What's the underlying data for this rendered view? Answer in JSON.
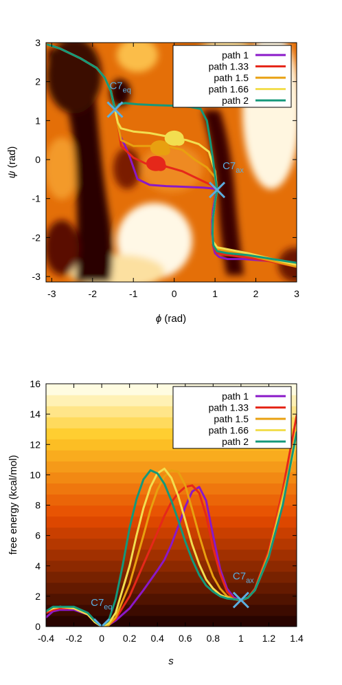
{
  "chart_data": [
    {
      "type": "heatmap",
      "xlabel_sym": "ϕ",
      "xlabel_unit": "(rad)",
      "ylabel_sym": "ψ",
      "ylabel_unit": "(rad)",
      "xlim": [
        -3.14,
        3.0
      ],
      "ylim": [
        -3.14,
        3.0
      ],
      "xticks": [
        "-3",
        "-2",
        "-1",
        "0",
        "1",
        "2",
        "3"
      ],
      "xtick_values": [
        -3,
        -2,
        -1,
        0,
        1,
        2,
        3
      ],
      "yticks": [
        "3",
        "2",
        "1",
        "0",
        "-1",
        "-2",
        "-3"
      ],
      "ytick_values": [
        3,
        2,
        1,
        0,
        -1,
        -2,
        -3
      ],
      "grid": false,
      "legend_position": "top-right",
      "colormap": "afmhot (dark = low free energy, white = high)",
      "markers": [
        {
          "label_main": "C7",
          "label_sub": "eq",
          "x": -1.45,
          "y": 1.28,
          "color": "#5aaee0"
        },
        {
          "label_main": "C7",
          "label_sub": "ax",
          "x": 1.05,
          "y": -0.78,
          "color": "#5aaee0"
        }
      ],
      "series": [
        {
          "name": "path 1",
          "color": "#8a18c8",
          "x": [
            -3.1,
            -2.8,
            -2.3,
            -1.9,
            -1.7,
            -1.55,
            -1.45,
            -1.38,
            -1.32,
            -1.2,
            -1.1,
            -0.9,
            -0.6,
            -0.2,
            0.3,
            0.7,
            0.95,
            1.05,
            1.0,
            0.95,
            0.93,
            0.93,
            0.95,
            1.0,
            1.1,
            1.3,
            1.7,
            2.3,
            3.0
          ],
          "y": [
            2.95,
            2.85,
            2.6,
            2.35,
            2.1,
            1.75,
            1.28,
            0.9,
            0.6,
            0.35,
            0.1,
            -0.5,
            -0.65,
            -0.68,
            -0.7,
            -0.72,
            -0.74,
            -0.78,
            -1.0,
            -1.3,
            -1.6,
            -1.9,
            -2.2,
            -2.4,
            -2.5,
            -2.55,
            -2.55,
            -2.6,
            -2.7
          ]
        },
        {
          "name": "path 1.33",
          "color": "#e5281a",
          "x": [
            -3.1,
            -2.8,
            -2.3,
            -1.9,
            -1.7,
            -1.55,
            -1.45,
            -1.38,
            -1.3,
            -1.0,
            -0.7,
            -0.3,
            0.2,
            0.6,
            0.9,
            1.05,
            1.0,
            0.95,
            0.94,
            0.95,
            1.05,
            1.3,
            1.7,
            2.3,
            3.0
          ],
          "y": [
            2.95,
            2.85,
            2.6,
            2.35,
            2.1,
            1.75,
            1.28,
            0.9,
            0.35,
            0.05,
            -0.1,
            -0.15,
            -0.3,
            -0.5,
            -0.65,
            -0.78,
            -1.1,
            -1.5,
            -1.9,
            -2.2,
            -2.4,
            -2.45,
            -2.5,
            -2.6,
            -2.75
          ]
        },
        {
          "name": "path 1.5",
          "color": "#e8a010",
          "x": [
            -3.1,
            -2.8,
            -2.3,
            -1.9,
            -1.7,
            -1.55,
            -1.45,
            -1.38,
            -1.3,
            -1.0,
            -0.6,
            -0.2,
            0.2,
            0.5,
            0.8,
            1.0,
            1.05,
            1.0,
            0.95,
            0.94,
            0.95,
            1.05,
            1.3,
            1.8,
            2.4,
            3.0
          ],
          "y": [
            2.95,
            2.85,
            2.6,
            2.35,
            2.1,
            1.75,
            1.28,
            0.9,
            0.5,
            0.35,
            0.35,
            0.35,
            0.25,
            0.0,
            -0.2,
            -0.45,
            -0.78,
            -1.1,
            -1.5,
            -1.9,
            -2.15,
            -2.3,
            -2.35,
            -2.45,
            -2.6,
            -2.75
          ]
        },
        {
          "name": "path 1.66",
          "color": "#f2de50",
          "x": [
            -3.1,
            -2.8,
            -2.3,
            -1.9,
            -1.7,
            -1.55,
            -1.45,
            -1.38,
            -1.3,
            -1.0,
            -0.6,
            -0.2,
            0.3,
            0.6,
            0.85,
            1.0,
            1.05,
            1.0,
            0.95,
            0.94,
            0.95,
            1.05,
            1.3,
            1.8,
            2.4,
            3.0
          ],
          "y": [
            2.95,
            2.85,
            2.6,
            2.35,
            2.1,
            1.75,
            1.28,
            0.95,
            0.8,
            0.72,
            0.68,
            0.6,
            0.5,
            0.4,
            0.2,
            -0.3,
            -0.78,
            -1.1,
            -1.5,
            -1.9,
            -2.1,
            -2.25,
            -2.3,
            -2.4,
            -2.55,
            -2.7
          ]
        },
        {
          "name": "path 2",
          "color": "#14987a",
          "x": [
            -3.1,
            -2.8,
            -2.3,
            -1.9,
            -1.7,
            -1.55,
            -1.45,
            -1.35,
            -1.2,
            -0.9,
            -0.5,
            0.0,
            0.4,
            0.65,
            0.8,
            0.88,
            0.95,
            1.0,
            1.05,
            1.0,
            0.95,
            0.94,
            0.96,
            1.05,
            1.3,
            1.8,
            2.4,
            3.0
          ],
          "y": [
            2.95,
            2.85,
            2.6,
            2.35,
            2.1,
            1.75,
            1.28,
            1.42,
            1.45,
            1.42,
            1.4,
            1.38,
            1.35,
            1.3,
            1.0,
            0.5,
            0.0,
            -0.4,
            -0.78,
            -1.1,
            -1.5,
            -1.9,
            -2.2,
            -2.35,
            -2.4,
            -2.45,
            -2.55,
            -2.65
          ]
        }
      ],
      "blobs": [
        {
          "color": "#f2de50",
          "x": 0.0,
          "y": 0.55
        },
        {
          "color": "#e8a010",
          "x": -0.35,
          "y": 0.3
        },
        {
          "color": "#e5281a",
          "x": -0.45,
          "y": -0.1
        }
      ]
    },
    {
      "type": "line",
      "xlabel": "s",
      "ylabel": "free energy (kcal/mol)",
      "xlim": [
        -0.4,
        1.4
      ],
      "ylim": [
        0,
        16
      ],
      "xticks": [
        "-0.4",
        "-0.2",
        "0",
        "0.2",
        "0.4",
        "0.6",
        "0.8",
        "1",
        "1.2",
        "1.4"
      ],
      "xtick_values": [
        -0.4,
        -0.2,
        0,
        0.2,
        0.4,
        0.6,
        0.8,
        1,
        1.2,
        1.4
      ],
      "yticks": [
        "0",
        "2",
        "4",
        "6",
        "8",
        "10",
        "12",
        "14",
        "16"
      ],
      "ytick_values": [
        0,
        2,
        4,
        6,
        8,
        10,
        12,
        14,
        16
      ],
      "grid": false,
      "legend_position": "top-right",
      "background": "horizontal afmhot bands (dark at low energy, light at high energy)",
      "markers": [
        {
          "label_main": "C7",
          "label_sub": "eq",
          "x": 0.0,
          "y": 0.0,
          "color": "#5aaee0"
        },
        {
          "label_main": "C7",
          "label_sub": "ax",
          "x": 1.0,
          "y": 1.75,
          "color": "#5aaee0"
        }
      ],
      "series": [
        {
          "name": "path 1",
          "color": "#8a18c8",
          "x": [
            -0.4,
            -0.35,
            -0.3,
            -0.2,
            -0.1,
            -0.05,
            0.0,
            0.05,
            0.1,
            0.2,
            0.3,
            0.4,
            0.45,
            0.5,
            0.55,
            0.6,
            0.65,
            0.7,
            0.75,
            0.8,
            0.85,
            0.9,
            0.95,
            1.0,
            1.05,
            1.1,
            1.2,
            1.3,
            1.4
          ],
          "y": [
            0.6,
            1.0,
            1.1,
            1.1,
            0.8,
            0.3,
            0.0,
            0.1,
            0.4,
            1.2,
            2.4,
            3.7,
            4.4,
            5.4,
            6.6,
            7.9,
            8.9,
            9.2,
            8.3,
            6.0,
            3.8,
            2.5,
            1.9,
            1.75,
            1.9,
            2.4,
            4.6,
            8.0,
            12.8
          ]
        },
        {
          "name": "path 1.33",
          "color": "#e5281a",
          "x": [
            -0.4,
            -0.35,
            -0.3,
            -0.2,
            -0.1,
            -0.05,
            0.0,
            0.05,
            0.1,
            0.2,
            0.3,
            0.4,
            0.45,
            0.5,
            0.55,
            0.6,
            0.65,
            0.7,
            0.75,
            0.8,
            0.85,
            0.9,
            0.95,
            1.0,
            1.05,
            1.1,
            1.2,
            1.3,
            1.4
          ],
          "y": [
            0.9,
            1.1,
            1.2,
            1.2,
            0.8,
            0.3,
            0.0,
            0.1,
            0.5,
            2.0,
            4.1,
            6.2,
            7.3,
            8.2,
            8.8,
            9.2,
            9.3,
            8.8,
            7.3,
            5.2,
            3.5,
            2.3,
            1.8,
            1.7,
            1.9,
            2.5,
            5.0,
            9.0,
            13.9
          ]
        },
        {
          "name": "path 1.5",
          "color": "#e8a010",
          "x": [
            -0.4,
            -0.35,
            -0.3,
            -0.2,
            -0.1,
            -0.05,
            0.0,
            0.05,
            0.1,
            0.2,
            0.3,
            0.35,
            0.4,
            0.45,
            0.5,
            0.55,
            0.6,
            0.65,
            0.7,
            0.75,
            0.8,
            0.85,
            0.9,
            0.95,
            1.0,
            1.05,
            1.1,
            1.2,
            1.3,
            1.4
          ],
          "y": [
            1.0,
            1.2,
            1.3,
            1.2,
            0.8,
            0.3,
            0.0,
            0.1,
            0.6,
            2.8,
            6.0,
            7.7,
            9.0,
            9.9,
            10.3,
            10.2,
            9.3,
            7.7,
            6.0,
            4.5,
            3.3,
            2.5,
            2.0,
            1.8,
            1.75,
            1.9,
            2.4,
            4.8,
            8.6,
            12.6
          ]
        },
        {
          "name": "path 1.66",
          "color": "#f2de50",
          "x": [
            -0.4,
            -0.35,
            -0.3,
            -0.2,
            -0.1,
            -0.05,
            0.0,
            0.05,
            0.1,
            0.2,
            0.25,
            0.3,
            0.35,
            0.4,
            0.45,
            0.5,
            0.55,
            0.6,
            0.65,
            0.7,
            0.75,
            0.8,
            0.85,
            0.9,
            0.95,
            1.0,
            1.05,
            1.1,
            1.2,
            1.3,
            1.4
          ],
          "y": [
            1.0,
            1.2,
            1.3,
            1.2,
            0.8,
            0.3,
            0.0,
            0.2,
            0.9,
            4.0,
            6.0,
            7.8,
            9.2,
            10.1,
            10.4,
            9.8,
            8.6,
            7.0,
            5.4,
            4.1,
            3.1,
            2.5,
            2.1,
            1.9,
            1.8,
            1.75,
            1.9,
            2.4,
            4.6,
            8.3,
            12.4
          ]
        },
        {
          "name": "path 2",
          "color": "#14987a",
          "x": [
            -0.4,
            -0.35,
            -0.3,
            -0.2,
            -0.1,
            -0.05,
            0.0,
            0.05,
            0.1,
            0.15,
            0.2,
            0.25,
            0.3,
            0.35,
            0.4,
            0.45,
            0.5,
            0.55,
            0.6,
            0.65,
            0.7,
            0.75,
            0.8,
            0.85,
            0.9,
            0.95,
            1.0,
            1.05,
            1.1,
            1.2,
            1.3,
            1.4
          ],
          "y": [
            1.0,
            1.3,
            1.3,
            1.3,
            0.9,
            0.4,
            0.0,
            0.4,
            1.8,
            4.0,
            6.5,
            8.4,
            9.7,
            10.3,
            10.1,
            9.4,
            8.3,
            7.0,
            5.6,
            4.4,
            3.4,
            2.7,
            2.3,
            2.0,
            1.85,
            1.8,
            1.75,
            1.9,
            2.4,
            4.6,
            8.0,
            12.8
          ]
        }
      ]
    }
  ]
}
